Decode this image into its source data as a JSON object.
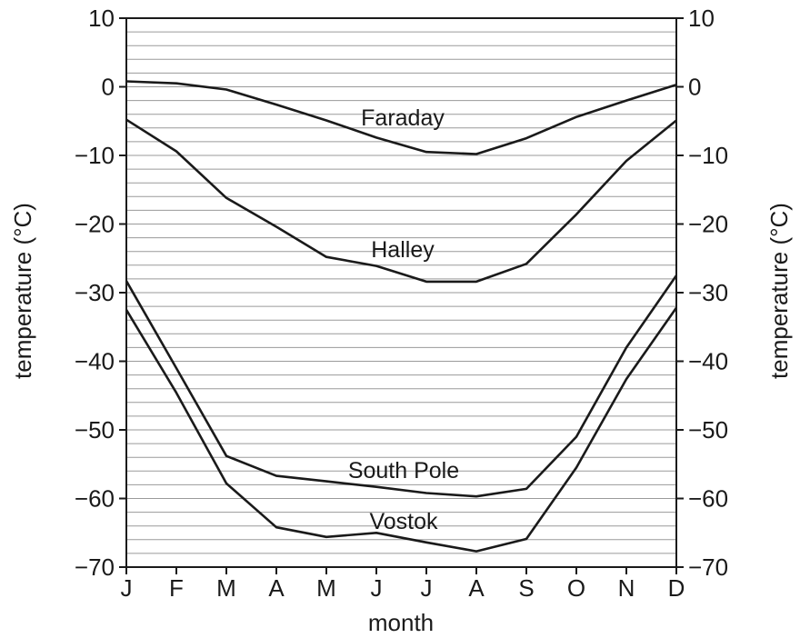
{
  "chart_data": {
    "type": "line",
    "xlabel": "month",
    "ylabel": "temperature (°C)",
    "ylabel_right": "temperature (°C)",
    "categories": [
      "J",
      "F",
      "M",
      "A",
      "M",
      "J",
      "J",
      "A",
      "S",
      "O",
      "N",
      "D"
    ],
    "ylim": [
      -70,
      10
    ],
    "yticks": [
      10,
      0,
      -10,
      -20,
      -30,
      -40,
      -50,
      -60,
      -70
    ],
    "ytick_labels": [
      "10",
      "0",
      "−10",
      "−20",
      "−30",
      "−40",
      "−50",
      "−60",
      "−70"
    ],
    "minor_grid_step": 2,
    "grid": true,
    "series": [
      {
        "name": "Faraday",
        "values": [
          0.8,
          0.5,
          -0.4,
          -2.6,
          -4.9,
          -7.4,
          -9.5,
          -9.8,
          -7.5,
          -4.4,
          -2.0,
          0.3
        ]
      },
      {
        "name": "Halley",
        "values": [
          -4.8,
          -9.4,
          -16.2,
          -20.4,
          -24.8,
          -26.1,
          -28.4,
          -28.4,
          -25.8,
          -18.6,
          -10.8,
          -4.9
        ]
      },
      {
        "name": "South Pole",
        "values": [
          -28.3,
          -41.0,
          -53.8,
          -56.7,
          -57.5,
          -58.3,
          -59.2,
          -59.7,
          -58.6,
          -51.0,
          -38.0,
          -27.5
        ]
      },
      {
        "name": "Vostok",
        "values": [
          -32.5,
          -44.6,
          -57.8,
          -64.2,
          -65.6,
          -65.0,
          -66.4,
          -67.7,
          -65.9,
          -55.5,
          -42.6,
          -32.2
        ]
      }
    ]
  }
}
